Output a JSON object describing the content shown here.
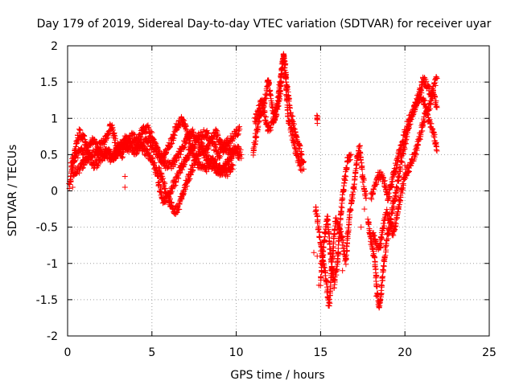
{
  "chart_data": {
    "type": "scatter",
    "title": "Day 179 of 2019, Sidereal Day-to-day VTEC variation (SDTVAR) for receiver uyar",
    "xlabel": "GPS time / hours",
    "ylabel": "SDTVAR / TECUs",
    "xlim": [
      0,
      25
    ],
    "ylim": [
      -2,
      2
    ],
    "xticks": [
      0,
      5,
      10,
      15,
      20,
      25
    ],
    "yticks": [
      -2,
      -1.5,
      -1,
      -0.5,
      0,
      0.5,
      1,
      1.5,
      2
    ],
    "xtick_labels": [
      "0",
      "5",
      "10",
      "15",
      "20",
      "25"
    ],
    "ytick_labels": [
      "-2",
      "-1.5",
      "-1",
      "-0.5",
      "0",
      "0.5",
      "1",
      "1.5",
      "2"
    ],
    "grid": true,
    "marker": "+",
    "series": [
      {
        "name": "uyar",
        "color": "#ff0000",
        "tracks": [
          [
            [
              0.1,
              0.05
            ],
            [
              0.3,
              0.35
            ],
            [
              0.5,
              0.65
            ],
            [
              0.7,
              0.8
            ],
            [
              1.0,
              0.7
            ],
            [
              1.3,
              0.45
            ],
            [
              1.6,
              0.35
            ],
            [
              2.0,
              0.45
            ],
            [
              2.3,
              0.55
            ],
            [
              2.7,
              0.45
            ],
            [
              3.0,
              0.55
            ],
            [
              3.3,
              0.65
            ],
            [
              3.6,
              0.6
            ],
            [
              4.0,
              0.55
            ],
            [
              4.4,
              0.65
            ],
            [
              4.8,
              0.7
            ],
            [
              5.2,
              0.55
            ],
            [
              5.6,
              0.45
            ],
            [
              6.0,
              0.6
            ],
            [
              6.5,
              0.9
            ],
            [
              6.8,
              1.0
            ],
            [
              7.2,
              0.7
            ],
            [
              7.5,
              0.5
            ],
            [
              7.8,
              0.35
            ],
            [
              8.2,
              0.3
            ],
            [
              8.6,
              0.45
            ],
            [
              9.0,
              0.3
            ],
            [
              9.5,
              0.25
            ],
            [
              9.8,
              0.35
            ]
          ],
          [
            [
              0.2,
              0.35
            ],
            [
              0.5,
              0.5
            ],
            [
              0.9,
              0.55
            ],
            [
              1.2,
              0.6
            ],
            [
              1.5,
              0.7
            ],
            [
              1.8,
              0.6
            ],
            [
              2.1,
              0.65
            ],
            [
              2.4,
              0.8
            ],
            [
              2.6,
              0.9
            ],
            [
              2.9,
              0.6
            ],
            [
              3.2,
              0.5
            ],
            [
              3.5,
              0.65
            ],
            [
              3.8,
              0.75
            ],
            [
              4.1,
              0.7
            ],
            [
              4.5,
              0.85
            ],
            [
              4.8,
              0.85
            ],
            [
              5.1,
              0.7
            ],
            [
              5.4,
              0.5
            ],
            [
              5.8,
              0.35
            ],
            [
              6.2,
              0.35
            ],
            [
              6.6,
              0.5
            ],
            [
              7.0,
              0.7
            ],
            [
              7.4,
              0.8
            ],
            [
              7.8,
              0.65
            ],
            [
              8.2,
              0.55
            ],
            [
              8.5,
              0.7
            ],
            [
              8.8,
              0.8
            ],
            [
              9.2,
              0.6
            ],
            [
              9.6,
              0.55
            ],
            [
              10.0,
              0.6
            ],
            [
              10.3,
              0.5
            ]
          ],
          [
            [
              0.3,
              0.25
            ],
            [
              0.7,
              0.3
            ],
            [
              1.0,
              0.4
            ],
            [
              1.4,
              0.5
            ],
            [
              1.8,
              0.55
            ],
            [
              2.2,
              0.5
            ],
            [
              2.6,
              0.45
            ],
            [
              3.0,
              0.6
            ],
            [
              3.4,
              0.7
            ],
            [
              3.8,
              0.65
            ],
            [
              4.2,
              0.6
            ],
            [
              4.6,
              0.55
            ],
            [
              5.0,
              0.45
            ],
            [
              5.3,
              0.25
            ],
            [
              5.5,
              0.0
            ],
            [
              5.7,
              -0.15
            ],
            [
              6.0,
              -0.05
            ],
            [
              6.3,
              0.1
            ],
            [
              6.6,
              0.25
            ],
            [
              7.0,
              0.45
            ],
            [
              7.4,
              0.6
            ],
            [
              7.8,
              0.75
            ],
            [
              8.2,
              0.8
            ],
            [
              8.6,
              0.65
            ],
            [
              9.0,
              0.5
            ],
            [
              9.4,
              0.65
            ],
            [
              9.8,
              0.75
            ],
            [
              10.2,
              0.85
            ]
          ],
          [
            [
              5.4,
              0.3
            ],
            [
              5.7,
              0.1
            ],
            [
              6.0,
              -0.1
            ],
            [
              6.3,
              -0.3
            ],
            [
              6.6,
              -0.2
            ],
            [
              6.9,
              0.0
            ],
            [
              7.2,
              0.2
            ],
            [
              7.5,
              0.4
            ],
            [
              7.9,
              0.55
            ],
            [
              8.3,
              0.45
            ],
            [
              8.7,
              0.3
            ],
            [
              9.1,
              0.25
            ],
            [
              9.5,
              0.4
            ],
            [
              9.9,
              0.55
            ],
            [
              10.2,
              0.45
            ]
          ],
          [
            [
              11.0,
              0.55
            ],
            [
              11.2,
              0.8
            ],
            [
              11.4,
              1.05
            ],
            [
              11.6,
              1.15
            ],
            [
              11.8,
              1.35
            ],
            [
              11.9,
              1.55
            ],
            [
              12.1,
              1.2
            ],
            [
              12.3,
              1.0
            ],
            [
              12.6,
              1.35
            ],
            [
              12.8,
              1.9
            ],
            [
              12.9,
              1.7
            ],
            [
              13.0,
              1.3
            ],
            [
              13.1,
              0.95
            ],
            [
              13.3,
              0.8
            ],
            [
              13.5,
              0.55
            ],
            [
              13.7,
              0.4
            ],
            [
              13.9,
              0.3
            ]
          ],
          [
            [
              11.1,
              0.95
            ],
            [
              11.3,
              1.1
            ],
            [
              11.5,
              1.25
            ],
            [
              11.7,
              1.05
            ],
            [
              11.9,
              0.85
            ],
            [
              12.1,
              0.9
            ],
            [
              12.4,
              1.1
            ],
            [
              12.6,
              1.5
            ],
            [
              12.8,
              1.85
            ],
            [
              13.0,
              1.45
            ],
            [
              13.2,
              1.1
            ],
            [
              13.4,
              0.9
            ],
            [
              13.6,
              0.7
            ],
            [
              13.8,
              0.55
            ],
            [
              14.0,
              0.4
            ]
          ],
          [
            [
              14.8,
              0.95
            ],
            [
              14.8,
              1.0
            ]
          ],
          [
            [
              14.7,
              -0.25
            ],
            [
              14.9,
              -0.55
            ],
            [
              15.1,
              -0.9
            ],
            [
              15.3,
              -1.15
            ],
            [
              15.4,
              -1.4
            ],
            [
              15.5,
              -1.6
            ],
            [
              15.6,
              -1.3
            ],
            [
              15.7,
              -0.9
            ],
            [
              15.8,
              -0.6
            ],
            [
              15.9,
              -0.4
            ],
            [
              16.1,
              -0.5
            ],
            [
              16.3,
              -0.7
            ],
            [
              16.5,
              -1.0
            ],
            [
              16.6,
              -0.6
            ],
            [
              16.8,
              -0.2
            ],
            [
              17.0,
              0.1
            ],
            [
              17.2,
              0.5
            ],
            [
              17.3,
              0.6
            ],
            [
              17.5,
              0.2
            ],
            [
              17.7,
              -0.1
            ]
          ],
          [
            [
              15.0,
              -1.25
            ],
            [
              15.2,
              -0.7
            ],
            [
              15.4,
              -0.35
            ],
            [
              15.6,
              -0.9
            ],
            [
              15.8,
              -1.3
            ],
            [
              16.0,
              -1.0
            ],
            [
              16.2,
              -0.3
            ],
            [
              16.4,
              0.1
            ],
            [
              16.6,
              0.4
            ],
            [
              16.8,
              0.5
            ]
          ],
          [
            [
              17.8,
              -0.4
            ],
            [
              18.0,
              -0.7
            ],
            [
              18.2,
              -0.95
            ],
            [
              18.3,
              -1.2
            ],
            [
              18.4,
              -1.5
            ],
            [
              18.5,
              -1.6
            ],
            [
              18.7,
              -1.1
            ],
            [
              18.9,
              -0.7
            ],
            [
              19.1,
              -0.5
            ],
            [
              19.3,
              -0.2
            ],
            [
              19.5,
              0.0
            ],
            [
              19.7,
              0.3
            ],
            [
              19.9,
              0.55
            ],
            [
              20.1,
              0.75
            ],
            [
              20.3,
              0.95
            ],
            [
              20.5,
              1.1
            ],
            [
              20.7,
              1.25
            ],
            [
              20.9,
              1.4
            ],
            [
              21.1,
              1.55
            ],
            [
              21.3,
              1.45
            ],
            [
              21.5,
              1.35
            ],
            [
              21.7,
              1.3
            ],
            [
              21.9,
              1.15
            ]
          ],
          [
            [
              18.0,
              -0.1
            ],
            [
              18.2,
              0.05
            ],
            [
              18.4,
              0.2
            ],
            [
              18.6,
              0.25
            ],
            [
              18.8,
              0.1
            ],
            [
              19.0,
              -0.1
            ],
            [
              19.2,
              0.1
            ],
            [
              19.4,
              0.3
            ],
            [
              19.6,
              0.45
            ],
            [
              19.8,
              0.65
            ],
            [
              20.0,
              0.8
            ],
            [
              20.2,
              0.95
            ],
            [
              20.4,
              1.05
            ],
            [
              20.6,
              1.15
            ],
            [
              20.8,
              1.25
            ],
            [
              21.0,
              1.3
            ],
            [
              21.2,
              1.2
            ],
            [
              21.4,
              1.0
            ],
            [
              21.6,
              0.85
            ],
            [
              21.8,
              0.7
            ],
            [
              21.9,
              0.55
            ]
          ],
          [
            [
              18.1,
              -0.6
            ],
            [
              18.3,
              -0.75
            ],
            [
              18.5,
              -0.8
            ],
            [
              18.7,
              -0.5
            ],
            [
              18.9,
              -0.3
            ],
            [
              19.1,
              -0.4
            ],
            [
              19.3,
              -0.6
            ],
            [
              19.5,
              -0.4
            ],
            [
              19.7,
              -0.1
            ],
            [
              19.9,
              0.1
            ],
            [
              20.1,
              0.25
            ],
            [
              20.3,
              0.35
            ],
            [
              20.5,
              0.45
            ],
            [
              20.7,
              0.6
            ],
            [
              20.9,
              0.75
            ],
            [
              21.1,
              0.95
            ],
            [
              21.3,
              1.1
            ],
            [
              21.5,
              1.2
            ],
            [
              21.7,
              1.45
            ],
            [
              21.9,
              1.55
            ]
          ]
        ],
        "scatter": [
          [
            0.3,
            0.05
          ],
          [
            3.4,
            0.2
          ],
          [
            3.4,
            0.05
          ],
          [
            14.0,
            0.3
          ],
          [
            14.6,
            -0.85
          ],
          [
            14.8,
            -0.9
          ],
          [
            14.9,
            -1.3
          ],
          [
            15.0,
            -1.0
          ],
          [
            16.3,
            -1.1
          ],
          [
            17.4,
            -0.5
          ],
          [
            17.6,
            -0.25
          ],
          [
            18.3,
            -1.45
          ],
          [
            18.5,
            -1.55
          ],
          [
            19.6,
            0.15
          ],
          [
            20.0,
            0.35
          ]
        ]
      }
    ]
  }
}
